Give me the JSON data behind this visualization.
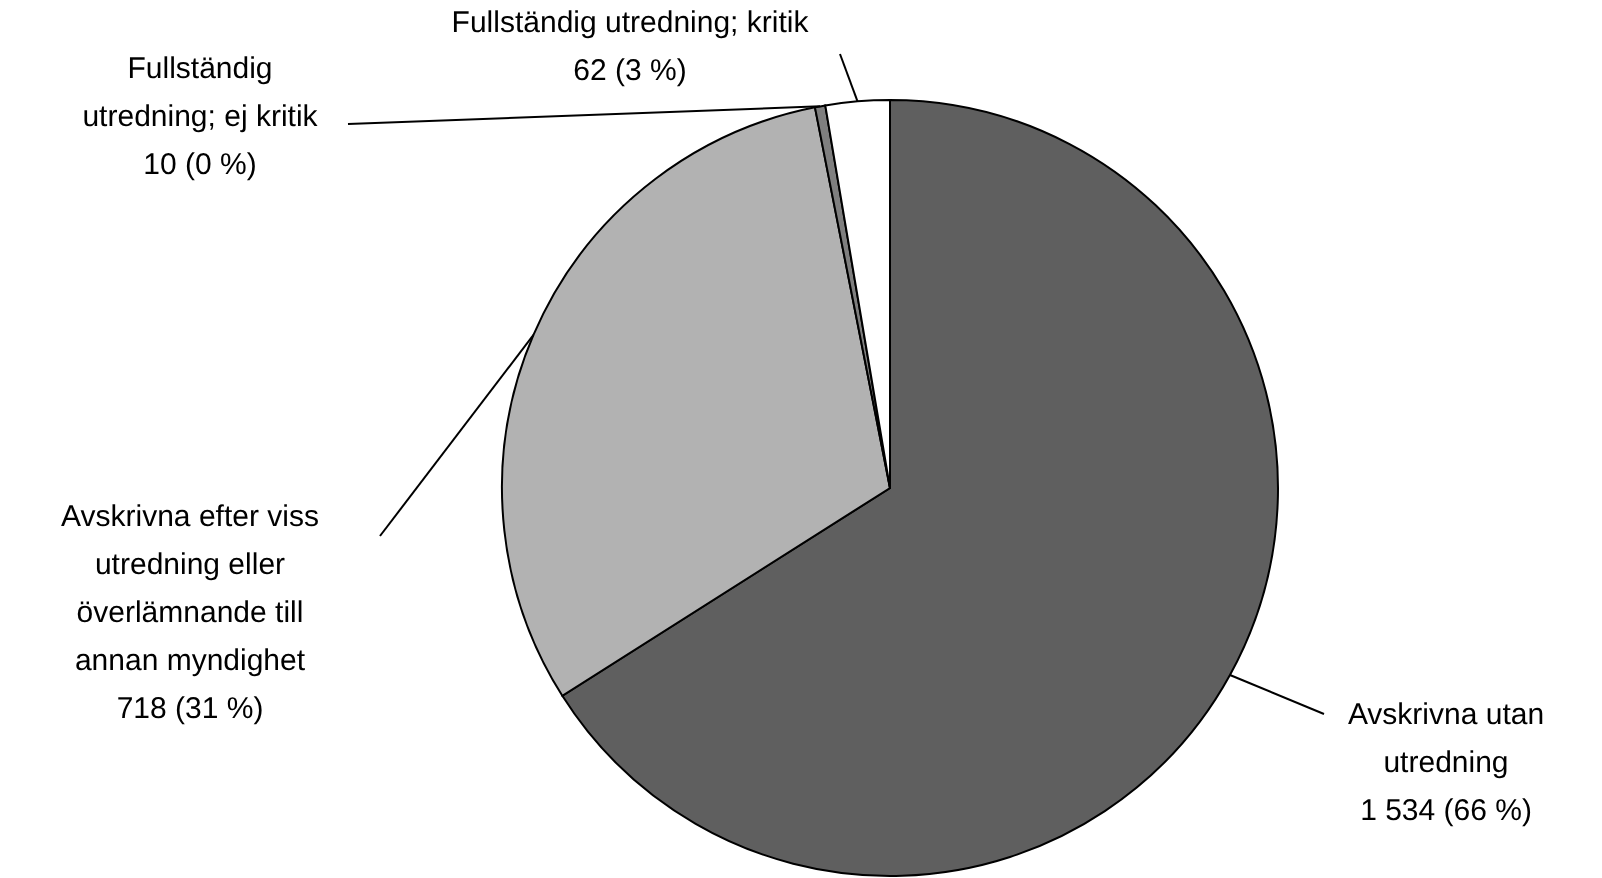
{
  "chart_data": {
    "type": "pie",
    "categories": [
      "Avskrivna utan utredning",
      "Avskrivna efter viss utredning eller överlämnande till annan myndighet",
      "Fullständig utredning; ej kritik",
      "Fullständig utredning; kritik"
    ],
    "values": [
      1534,
      718,
      10,
      62
    ],
    "colors": [
      "#5f5f5f",
      "#b2b2b2",
      "#7f7f7f",
      "#ffffff"
    ],
    "value_labels": [
      "1 534 (66 %)",
      "718 (31 %)",
      "10 (0 %)",
      "62 (3 %)"
    ]
  }
}
